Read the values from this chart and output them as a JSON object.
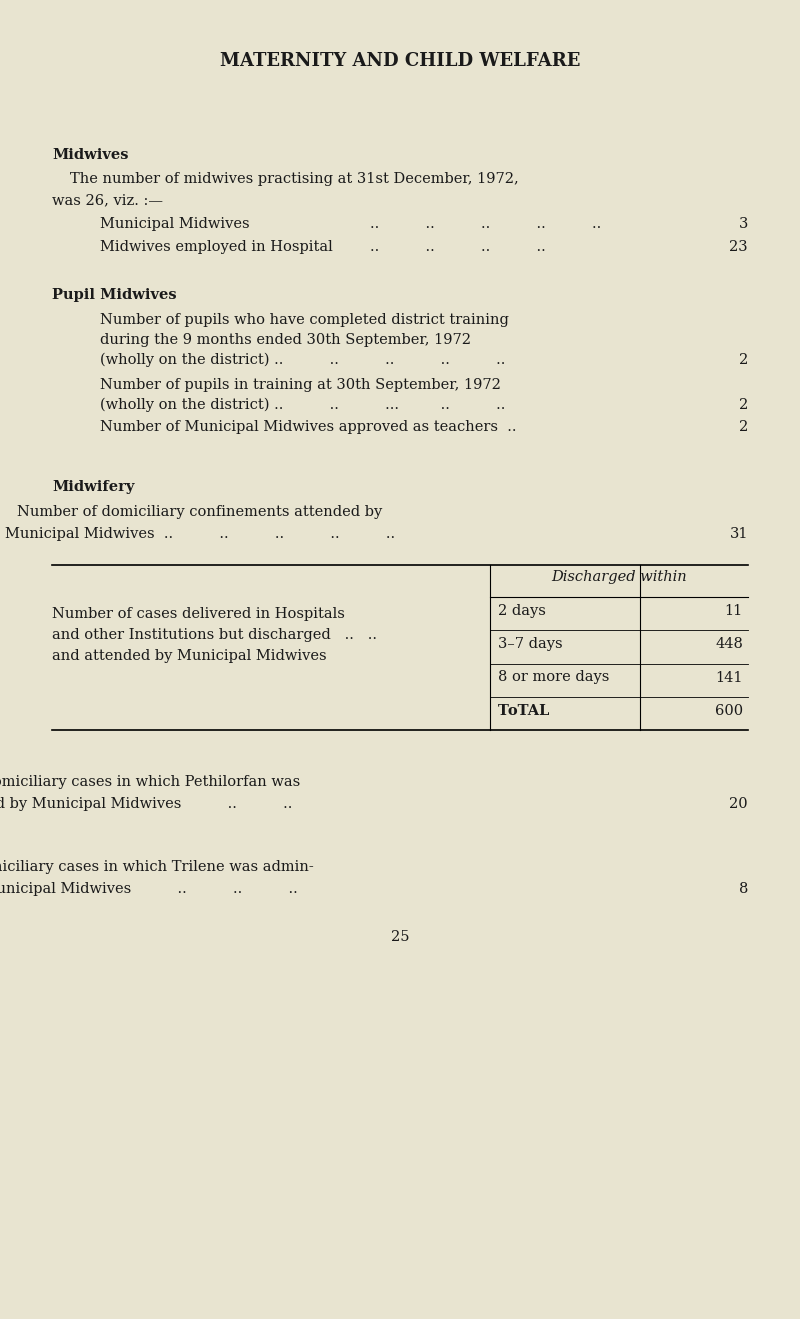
{
  "bg_color": "#e8e4d0",
  "text_color": "#1a1a1a",
  "title": "MATERNITY AND CHILD WELFARE",
  "title_fontsize": 13,
  "body_fontsize": 10.5,
  "page_number": "25",
  "table": {
    "header": "Discharged within",
    "left_label_lines": [
      "Number of cases delivered in Hospitals",
      "and other Institutions but discharged   ..   ..",
      "and attended by Municipal Midwives"
    ],
    "rows": [
      {
        "label": "2 days",
        "value": "11",
        "bold": false
      },
      {
        "label": "3–7 days",
        "value": "448",
        "bold": false
      },
      {
        "label": "8 or more days",
        "value": "141",
        "bold": false
      },
      {
        "label": "Tᴏtal",
        "value": "600",
        "bold": true
      }
    ]
  }
}
